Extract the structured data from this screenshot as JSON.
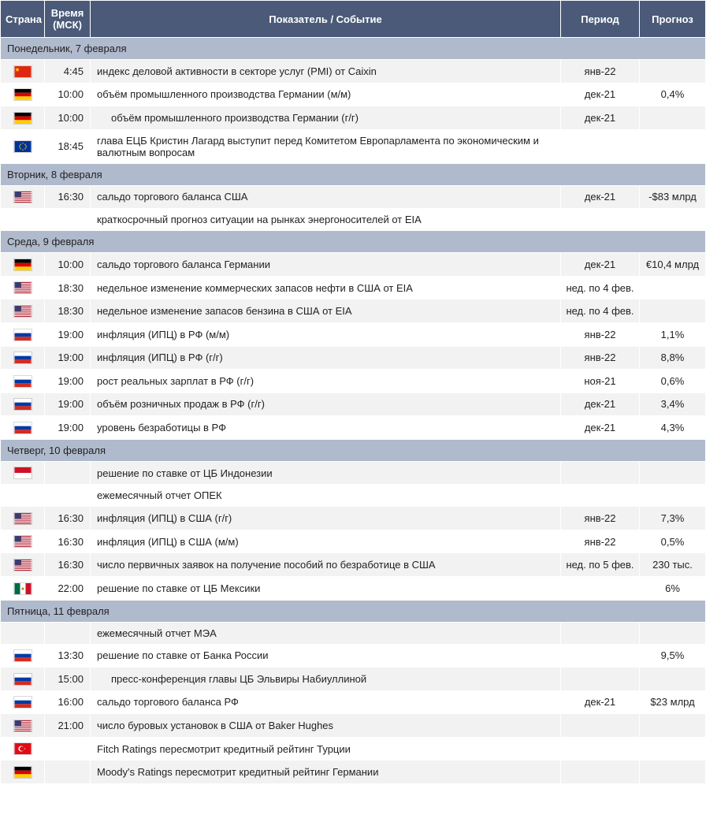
{
  "header": {
    "country": "Страна",
    "time": "Время (МСК)",
    "event": "Показатель / Событие",
    "period": "Период",
    "forecast": "Прогноз"
  },
  "colors": {
    "header_bg": "#4a5a78",
    "header_text": "#ffffff",
    "day_bg": "#b0bacd",
    "row_bg": "#f2f2f2",
    "row_alt_bg": "#ffffff",
    "border": "#ffffff",
    "text": "#222222"
  },
  "flags": {
    "china": "china",
    "germany": "germany",
    "eu": "eu",
    "usa": "usa",
    "russia": "russia",
    "indonesia": "indonesia",
    "mexico": "mexico",
    "turkey": "turkey"
  },
  "days": [
    {
      "label": "Понедельник, 7 февраля",
      "rows": [
        {
          "flag": "china",
          "time": "4:45",
          "event": "индекс деловой активности в секторе услуг (PMI) от Caixin",
          "period": "янв-22",
          "forecast": ""
        },
        {
          "flag": "germany",
          "time": "10:00",
          "event": "объём промышленного производства Германии (м/м)",
          "period": "дек-21",
          "forecast": "0,4%"
        },
        {
          "flag": "germany",
          "time": "10:00",
          "event": "объём промышленного производства Германии (г/г)",
          "indent": true,
          "period": "дек-21",
          "forecast": ""
        },
        {
          "flag": "eu",
          "time": "18:45",
          "event": "глава ЕЦБ Кристин Лагард выступит перед Комитетом Европарламента по экономическим и валютным вопросам",
          "period": "",
          "forecast": ""
        }
      ]
    },
    {
      "label": "Вторник, 8 февраля",
      "rows": [
        {
          "flag": "usa",
          "time": "16:30",
          "event": "сальдо торгового баланса США",
          "period": "дек-21",
          "forecast": "-$83 млрд"
        },
        {
          "flag": "",
          "time": "",
          "event": "краткосрочный прогноз ситуации на рынках энергоносителей от EIA",
          "period": "",
          "forecast": ""
        }
      ]
    },
    {
      "label": "Среда, 9 февраля",
      "rows": [
        {
          "flag": "germany",
          "time": "10:00",
          "event": "сальдо торгового баланса Германии",
          "period": "дек-21",
          "forecast": "€10,4 млрд"
        },
        {
          "flag": "usa",
          "time": "18:30",
          "event": "недельное изменение коммерческих запасов нефти в США от EIA",
          "period": "нед. по 4 фев.",
          "forecast": ""
        },
        {
          "flag": "usa",
          "time": "18:30",
          "event": "недельное изменение запасов бензина в США от EIA",
          "period": "нед. по 4 фев.",
          "forecast": ""
        },
        {
          "flag": "russia",
          "time": "19:00",
          "event": "инфляция (ИПЦ) в РФ (м/м)",
          "period": "янв-22",
          "forecast": "1,1%"
        },
        {
          "flag": "russia",
          "time": "19:00",
          "event": "инфляция (ИПЦ) в РФ (г/г)",
          "period": "янв-22",
          "forecast": "8,8%"
        },
        {
          "flag": "russia",
          "time": "19:00",
          "event": "рост реальных зарплат в РФ (г/г)",
          "period": "ноя-21",
          "forecast": "0,6%"
        },
        {
          "flag": "russia",
          "time": "19:00",
          "event": "объём розничных продаж в РФ (г/г)",
          "period": "дек-21",
          "forecast": "3,4%"
        },
        {
          "flag": "russia",
          "time": "19:00",
          "event": "уровень безработицы в РФ",
          "period": "дек-21",
          "forecast": "4,3%"
        }
      ]
    },
    {
      "label": "Четверг, 10 февраля",
      "rows": [
        {
          "flag": "indonesia",
          "time": "",
          "event": "решение по ставке от ЦБ Индонезии",
          "period": "",
          "forecast": ""
        },
        {
          "flag": "",
          "time": "",
          "event": "ежемесячный отчет ОПЕК",
          "period": "",
          "forecast": ""
        },
        {
          "flag": "usa",
          "time": "16:30",
          "event": "инфляция (ИПЦ) в США (г/г)",
          "period": "янв-22",
          "forecast": "7,3%"
        },
        {
          "flag": "usa",
          "time": "16:30",
          "event": "инфляция (ИПЦ) в США (м/м)",
          "period": "янв-22",
          "forecast": "0,5%"
        },
        {
          "flag": "usa",
          "time": "16:30",
          "event": "число первичных заявок на получение пособий по безработице в США",
          "period": "нед. по 5 фев.",
          "forecast": "230 тыс."
        },
        {
          "flag": "mexico",
          "time": "22:00",
          "event": "решение по ставке от ЦБ Мексики",
          "period": "",
          "forecast": "6%"
        }
      ]
    },
    {
      "label": "Пятница, 11 февраля",
      "rows": [
        {
          "flag": "",
          "time": "",
          "event": "ежемесячный отчет МЭА",
          "period": "",
          "forecast": ""
        },
        {
          "flag": "russia",
          "time": "13:30",
          "event": "решение по ставке от Банка России",
          "period": "",
          "forecast": "9,5%"
        },
        {
          "flag": "russia",
          "time": "15:00",
          "event": "пресс-конференция главы ЦБ Эльвиры Набиуллиной",
          "indent": true,
          "period": "",
          "forecast": ""
        },
        {
          "flag": "russia",
          "time": "16:00",
          "event": "сальдо торгового баланса РФ",
          "period": "дек-21",
          "forecast": "$23 млрд"
        },
        {
          "flag": "usa",
          "time": "21:00",
          "event": "число буровых установок в США от Baker Hughes",
          "period": "",
          "forecast": ""
        },
        {
          "flag": "turkey",
          "time": "",
          "event": "Fitch Ratings пересмотрит кредитный рейтинг Турции",
          "period": "",
          "forecast": ""
        },
        {
          "flag": "germany",
          "time": "",
          "event": "Moody's Ratings пересмотрит кредитный рейтинг Германии",
          "period": "",
          "forecast": ""
        }
      ]
    }
  ]
}
